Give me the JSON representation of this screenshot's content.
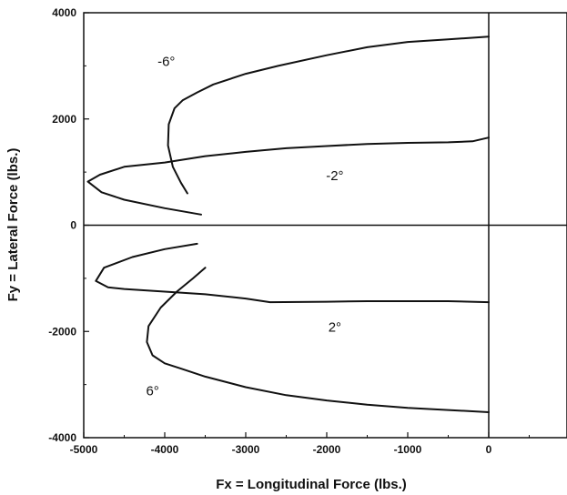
{
  "chart_data": {
    "type": "line",
    "xlabel": "Fx = Longitudinal Force (lbs.)",
    "ylabel": "Fy = Lateral Force (lbs.)",
    "xlim": [
      -5000,
      1000
    ],
    "ylim": [
      -4000,
      4000
    ],
    "x_ticks": [
      -5000,
      -4000,
      -3000,
      -2000,
      -1000,
      0
    ],
    "x_tick_labels": [
      "-5000",
      "-4000",
      "-3000",
      "-2000",
      "-1000",
      "0"
    ],
    "y_ticks": [
      4000,
      2000,
      0,
      -2000,
      -4000
    ],
    "y_tick_labels": [
      "4000",
      "2000",
      "0",
      "-2000",
      "-4000"
    ],
    "grid": false,
    "series": [
      {
        "name": "-6°",
        "label_at": [
          -3980,
          3000
        ],
        "points": [
          [
            -3720,
            600
          ],
          [
            -3800,
            800
          ],
          [
            -3900,
            1100
          ],
          [
            -3960,
            1500
          ],
          [
            -3950,
            1900
          ],
          [
            -3880,
            2200
          ],
          [
            -3780,
            2350
          ],
          [
            -3600,
            2500
          ],
          [
            -3400,
            2650
          ],
          [
            -3000,
            2850
          ],
          [
            -2600,
            3000
          ],
          [
            -2000,
            3200
          ],
          [
            -1500,
            3350
          ],
          [
            -1000,
            3450
          ],
          [
            -500,
            3500
          ],
          [
            0,
            3550
          ]
        ]
      },
      {
        "name": "-2°",
        "label_at": [
          -1900,
          850
        ],
        "points": [
          [
            -3550,
            200
          ],
          [
            -4000,
            320
          ],
          [
            -4500,
            480
          ],
          [
            -4780,
            620
          ],
          [
            -4950,
            820
          ],
          [
            -4800,
            950
          ],
          [
            -4500,
            1100
          ],
          [
            -4000,
            1180
          ],
          [
            -3500,
            1300
          ],
          [
            -3000,
            1380
          ],
          [
            -2500,
            1450
          ],
          [
            -2000,
            1490
          ],
          [
            -1500,
            1530
          ],
          [
            -1000,
            1550
          ],
          [
            -500,
            1560
          ],
          [
            -200,
            1580
          ],
          [
            0,
            1650
          ]
        ]
      },
      {
        "name": "2°",
        "label_at": [
          -1900,
          -2000
        ],
        "points": [
          [
            -3600,
            -350
          ],
          [
            -4000,
            -450
          ],
          [
            -4400,
            -600
          ],
          [
            -4750,
            -800
          ],
          [
            -4850,
            -1050
          ],
          [
            -4700,
            -1170
          ],
          [
            -4500,
            -1200
          ],
          [
            -4000,
            -1250
          ],
          [
            -3500,
            -1300
          ],
          [
            -3000,
            -1380
          ],
          [
            -2700,
            -1450
          ],
          [
            -2000,
            -1440
          ],
          [
            -1500,
            -1430
          ],
          [
            -1000,
            -1430
          ],
          [
            -500,
            -1430
          ],
          [
            0,
            -1450
          ]
        ]
      },
      {
        "name": "6°",
        "label_at": [
          -4150,
          -3200
        ],
        "points": [
          [
            -3500,
            -800
          ],
          [
            -3650,
            -1000
          ],
          [
            -3850,
            -1250
          ],
          [
            -4050,
            -1550
          ],
          [
            -4200,
            -1900
          ],
          [
            -4220,
            -2200
          ],
          [
            -4150,
            -2450
          ],
          [
            -4000,
            -2600
          ],
          [
            -3800,
            -2700
          ],
          [
            -3500,
            -2850
          ],
          [
            -3000,
            -3050
          ],
          [
            -2500,
            -3200
          ],
          [
            -2000,
            -3300
          ],
          [
            -1500,
            -3380
          ],
          [
            -1000,
            -3440
          ],
          [
            -500,
            -3480
          ],
          [
            0,
            -3520
          ]
        ]
      }
    ]
  }
}
